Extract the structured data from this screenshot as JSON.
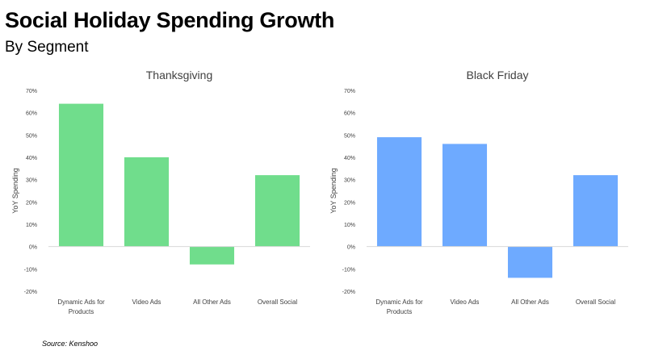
{
  "header": {
    "title": "Social Holiday Spending Growth",
    "subtitle": "By Segment"
  },
  "footer": {
    "source": "Source: Kenshoo"
  },
  "chart_data": [
    {
      "type": "bar",
      "title": "Thanksgiving",
      "ylabel": "YoY Spending",
      "xlabel": "",
      "categories": [
        [
          "Dynamic Ads for",
          "Products"
        ],
        [
          "Video Ads"
        ],
        [
          "All Other Ads"
        ],
        [
          "Overall Social"
        ]
      ],
      "values": [
        64,
        40,
        -8,
        32
      ],
      "ylim": [
        -20,
        70
      ],
      "yticks": [
        -20,
        -10,
        0,
        10,
        20,
        30,
        40,
        50,
        60,
        70
      ],
      "ytick_format": "percent",
      "color": "#70dd8c",
      "grid": false,
      "legend": "none"
    },
    {
      "type": "bar",
      "title": "Black Friday",
      "ylabel": "YoY Spending",
      "xlabel": "",
      "categories": [
        [
          "Dynamic Ads for",
          "Products"
        ],
        [
          "Video Ads"
        ],
        [
          "All Other Ads"
        ],
        [
          "Overall Social"
        ]
      ],
      "values": [
        49,
        46,
        -14,
        32
      ],
      "ylim": [
        -20,
        70
      ],
      "yticks": [
        -20,
        -10,
        0,
        10,
        20,
        30,
        40,
        50,
        60,
        70
      ],
      "ytick_format": "percent",
      "color": "#6eaaff",
      "grid": false,
      "legend": "none"
    }
  ]
}
